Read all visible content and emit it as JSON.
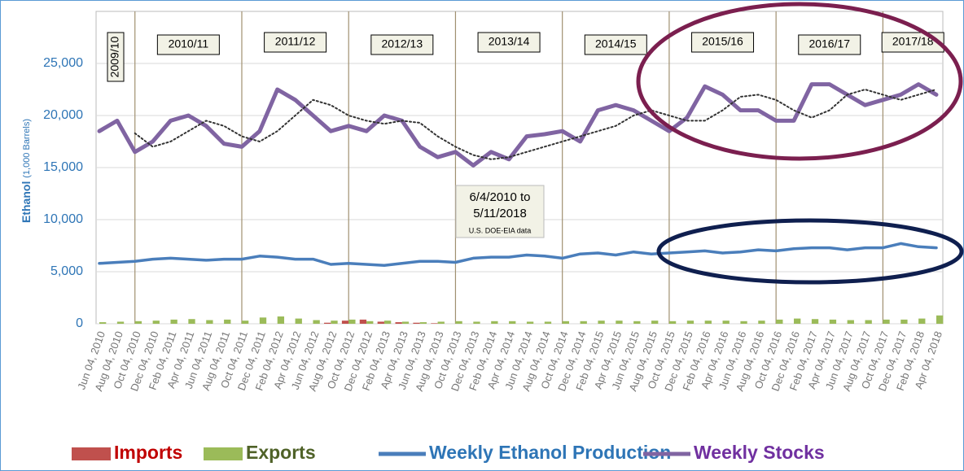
{
  "chart_data": {
    "type": "line",
    "ylabel": "Ethanol",
    "ylabel_unit": "(1,000 Barrels)",
    "annotation": [
      "6/4/2010 to",
      "5/11/2018"
    ],
    "source": "U.S. DOE-EIA data",
    "marketing_years": [
      "2009/10",
      "2010/11",
      "2011/12",
      "2012/13",
      "2013/14",
      "2014/15",
      "2015/16",
      "2016/17",
      "2017/18"
    ],
    "categories": [
      "Jun 04, 2010",
      "Aug 04, 2010",
      "Oct 04, 2010",
      "Dec 04, 2010",
      "Feb 04, 2011",
      "Apr 04, 2011",
      "Jun 04, 2011",
      "Aug 04, 2011",
      "Oct 04, 2011",
      "Dec 04, 2011",
      "Feb 04, 2012",
      "Apr 04, 2012",
      "Jun 04, 2012",
      "Aug 04, 2012",
      "Oct 04, 2012",
      "Dec 04, 2012",
      "Feb 04, 2013",
      "Apr 04, 2013",
      "Jun 04, 2013",
      "Aug 04, 2013",
      "Oct 04, 2013",
      "Dec 04, 2013",
      "Feb 04, 2014",
      "Apr 04, 2014",
      "Jun 04, 2014",
      "Aug 04, 2014",
      "Oct 04, 2014",
      "Dec 04, 2014",
      "Feb 04, 2015",
      "Apr 04, 2015",
      "Jun 04, 2015",
      "Aug 04, 2015",
      "Oct 04, 2015",
      "Dec 04, 2015",
      "Feb 04, 2016",
      "Apr 04, 2016",
      "Jun 04, 2016",
      "Aug 04, 2016",
      "Oct 04, 2016",
      "Dec 04, 2016",
      "Feb 04, 2017",
      "Apr 04, 2017",
      "Jun 04, 2017",
      "Aug 04, 2017",
      "Oct 04, 2017",
      "Dec 04, 2017",
      "Feb 04, 2018",
      "Apr 04, 2018"
    ],
    "series": [
      {
        "name": "Imports",
        "kind": "bar",
        "color": "#c0504d",
        "legend_color": "#c00000",
        "values": [
          0,
          0,
          0,
          0,
          0,
          0,
          0,
          0,
          0,
          0,
          0,
          0,
          0,
          100,
          300,
          400,
          200,
          150,
          100,
          50,
          0,
          0,
          0,
          0,
          0,
          0,
          0,
          0,
          0,
          0,
          0,
          0,
          0,
          0,
          0,
          0,
          0,
          0,
          0,
          0,
          0,
          0,
          0,
          0,
          0,
          0,
          0,
          0
        ]
      },
      {
        "name": "Exports",
        "kind": "bar",
        "color": "#9bbb59",
        "legend_color": "#4f6228",
        "values": [
          150,
          200,
          250,
          300,
          400,
          450,
          350,
          400,
          300,
          600,
          700,
          500,
          350,
          300,
          400,
          250,
          300,
          200,
          150,
          200,
          250,
          200,
          250,
          250,
          200,
          200,
          250,
          250,
          300,
          300,
          250,
          300,
          250,
          300,
          300,
          300,
          250,
          300,
          400,
          500,
          450,
          400,
          350,
          350,
          400,
          400,
          500,
          800
        ]
      },
      {
        "name": "Weekly Ethanol Production",
        "kind": "line",
        "color": "#4a7ebb",
        "legend_color": "#2e75b6",
        "values": [
          5800,
          5900,
          6000,
          6200,
          6300,
          6200,
          6100,
          6200,
          6200,
          6500,
          6400,
          6200,
          6200,
          5700,
          5800,
          5700,
          5600,
          5800,
          6000,
          6000,
          5900,
          6300,
          6400,
          6400,
          6600,
          6500,
          6300,
          6700,
          6800,
          6600,
          6900,
          6700,
          6800,
          6900,
          7000,
          6800,
          6900,
          7100,
          7000,
          7200,
          7300,
          7300,
          7100,
          7300,
          7300,
          7700,
          7400,
          7300
        ]
      },
      {
        "name": "Weekly Stocks",
        "kind": "line",
        "color": "#8064a2",
        "legend_color": "#7030a0",
        "values": [
          18500,
          19500,
          16500,
          17500,
          19500,
          20000,
          19000,
          17300,
          17000,
          18500,
          22500,
          21500,
          20000,
          18500,
          19000,
          18500,
          20000,
          19500,
          17000,
          16000,
          16500,
          15200,
          16500,
          15800,
          18000,
          18200,
          18500,
          17500,
          20500,
          21000,
          20500,
          19500,
          18500,
          19800,
          22800,
          22000,
          20500,
          20500,
          19500,
          19500,
          23000,
          23000,
          22000,
          21000,
          21500,
          22000,
          23000,
          22000
        ]
      },
      {
        "kind": "dotted",
        "color": "#333333",
        "values": [
          null,
          null,
          18300,
          17000,
          17500,
          18500,
          19500,
          19000,
          18000,
          17500,
          18500,
          20000,
          21500,
          21000,
          20000,
          19500,
          19200,
          19500,
          19300,
          18000,
          17000,
          16200,
          15800,
          16000,
          16500,
          17000,
          17500,
          18000,
          18500,
          19000,
          20000,
          20500,
          20000,
          19500,
          19500,
          20500,
          21800,
          22000,
          21500,
          20500,
          19800,
          20500,
          22000,
          22500,
          22000,
          21500,
          22000,
          22500
        ]
      }
    ],
    "ylim": [
      0,
      30000
    ],
    "yticks": [
      0,
      {
        "value": 5000,
        "label": "5,000"
      },
      {
        "value": 10000,
        "label": "10,000"
      },
      {
        "value": 15000,
        "label": "15,000"
      },
      {
        "value": 20000,
        "label": "20,000"
      },
      {
        "value": 25000,
        "label": "25,000"
      }
    ],
    "grid": true
  }
}
